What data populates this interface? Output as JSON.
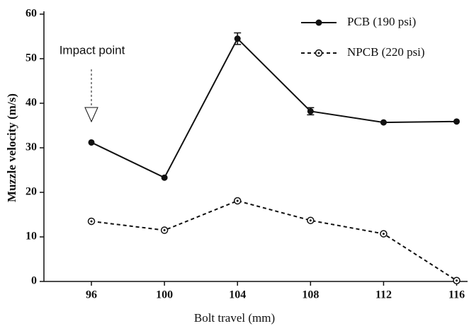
{
  "chart_data": {
    "type": "line",
    "xlabel": "Bolt travel (mm)",
    "ylabel": "Muzzle velocity (m/s)",
    "annotation": "Impact point",
    "x": [
      96,
      100,
      104,
      108,
      112,
      116
    ],
    "series": [
      {
        "name": "PCB (190 psi)",
        "color": "#111111",
        "style": "solid",
        "marker": "filled",
        "values": [
          31.2,
          23.3,
          54.5,
          38.2,
          35.7,
          35.9
        ],
        "errors": [
          null,
          null,
          1.3,
          0.8,
          null,
          null
        ]
      },
      {
        "name": "NPCB (220 psi)",
        "color": "#111111",
        "style": "dashed",
        "marker": "open",
        "values": [
          13.5,
          11.5,
          18.1,
          13.7,
          10.7,
          0.2
        ]
      }
    ],
    "xlim": [
      93.4,
      116.6
    ],
    "xticks": [
      96,
      100,
      104,
      108,
      112,
      116
    ],
    "ylim": [
      0,
      60
    ],
    "yticks": [
      0,
      10,
      20,
      30,
      40,
      50,
      60
    ]
  }
}
